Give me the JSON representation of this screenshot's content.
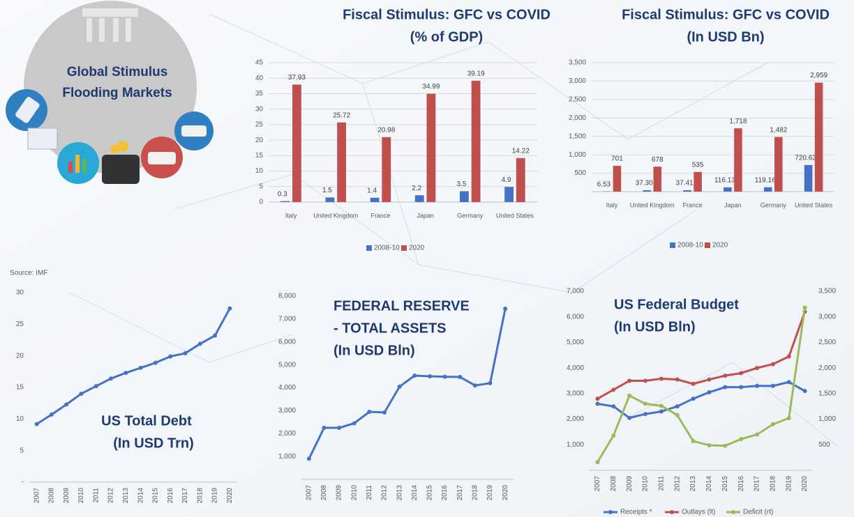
{
  "illustration": {
    "title": [
      "Global Stimulus",
      "Flooding Markets"
    ]
  },
  "chart_data": [
    {
      "type": "bar",
      "title": [
        "Fiscal Stimulus: GFC vs COVID",
        "(% of GDP)"
      ],
      "categories": [
        "Italy",
        "United Kingdom",
        "France",
        "Japan",
        "Germany",
        "United States"
      ],
      "series": [
        {
          "name": "2008-10",
          "color": "#4472c4",
          "values": [
            0.3,
            1.5,
            1.4,
            2.2,
            3.5,
            4.9
          ]
        },
        {
          "name": "2020",
          "color": "#c0504d",
          "values": [
            37.93,
            25.72,
            20.98,
            34.99,
            39.19,
            14.22
          ]
        }
      ],
      "ylim": [
        0,
        45
      ],
      "yticks": [
        0,
        5,
        10,
        15,
        20,
        25,
        30,
        35,
        40,
        45
      ],
      "grid": true,
      "legend": "bottom"
    },
    {
      "type": "bar",
      "title": [
        "Fiscal Stimulus: GFC vs COVID",
        "(In USD Bn)"
      ],
      "categories": [
        "Italy",
        "United Kingdom",
        "France",
        "Japan",
        "Germany",
        "United States"
      ],
      "series": [
        {
          "name": "2008-10",
          "color": "#4472c4",
          "values": [
            6.53,
            37.3,
            37.41,
            116.13,
            119.16,
            720.63
          ],
          "value_labels": [
            "6.53",
            "37.30",
            "37.41",
            "116.13",
            "119.16",
            "720.63"
          ]
        },
        {
          "name": "2020",
          "color": "#c0504d",
          "values": [
            701,
            678,
            535,
            1718,
            1482,
            2959
          ],
          "value_labels": [
            "701",
            "678",
            "535",
            "1,718",
            "1,482",
            "2,959"
          ]
        }
      ],
      "ylim": [
        0,
        3500
      ],
      "yticks": [
        500,
        {
          "value": 1000,
          "label": "1,000"
        },
        {
          "value": 1500,
          "label": "1,500"
        },
        {
          "value": 2000,
          "label": "2,000"
        },
        {
          "value": 2500,
          "label": "2,500"
        },
        {
          "value": 3000,
          "label": "3,000"
        },
        {
          "value": 3500,
          "label": "3,500"
        }
      ],
      "grid": true,
      "legend": "bottom"
    },
    {
      "type": "line",
      "title": [
        "US Total Debt",
        "(In USD Trn)"
      ],
      "note": "Source: IMF",
      "categories": [
        "2007",
        "2008",
        "2009",
        "2010",
        "2011",
        "2012",
        "2013",
        "2014",
        "2015",
        "2016",
        "2017",
        "2018",
        "2019",
        "2020"
      ],
      "series": [
        {
          "color": "#4472c4",
          "values": [
            9.2,
            10.7,
            12.3,
            14.0,
            15.2,
            16.4,
            17.3,
            18.1,
            18.9,
            19.9,
            20.4,
            21.9,
            23.2,
            27.5
          ]
        }
      ],
      "ylim": [
        0,
        30
      ],
      "yticks": [
        {
          "value": 0,
          "label": "-"
        },
        5,
        10,
        15,
        20,
        25,
        30
      ],
      "grid": false
    },
    {
      "type": "line",
      "title": [
        "FEDERAL RESERVE",
        "- TOTAL ASSETS",
        "(In USD Bln)"
      ],
      "categories": [
        "2007",
        "2008",
        "2009",
        "2010",
        "2011",
        "2012",
        "2013",
        "2014",
        "2015",
        "2016",
        "2017",
        "2018",
        "2019",
        "2020"
      ],
      "series": [
        {
          "color": "#4472c4",
          "values": [
            900,
            2250,
            2250,
            2450,
            2950,
            2920,
            4050,
            4530,
            4500,
            4480,
            4470,
            4100,
            4200,
            7450
          ]
        }
      ],
      "ylim": [
        0,
        8000
      ],
      "yticks": [
        {
          "value": 1000,
          "label": "1,000"
        },
        {
          "value": 2000,
          "label": "2,000"
        },
        {
          "value": 3000,
          "label": "3,000"
        },
        {
          "value": 4000,
          "label": "4,000"
        },
        {
          "value": 5000,
          "label": "5,000"
        },
        {
          "value": 6000,
          "label": "6,000"
        },
        {
          "value": 7000,
          "label": "7,000"
        },
        {
          "value": 8000,
          "label": "8,000"
        }
      ],
      "grid": false
    },
    {
      "type": "line",
      "title": [
        "US Federal Budget",
        "(In USD Bln)"
      ],
      "categories": [
        "2007",
        "2008",
        "2009",
        "2010",
        "2011",
        "2012",
        "2013",
        "2014",
        "2015",
        "2016",
        "2017",
        "2018",
        "2019",
        "2020"
      ],
      "series": [
        {
          "name": "Receipts *",
          "color": "#4472c4",
          "values": [
            2600,
            2500,
            2050,
            2200,
            2300,
            2500,
            2800,
            3050,
            3250,
            3250,
            3300,
            3300,
            3450,
            3100
          ]
        },
        {
          "name": "Outlays (lt)",
          "color": "#c0504d",
          "values": [
            2800,
            3150,
            3500,
            3500,
            3580,
            3550,
            3380,
            3550,
            3700,
            3800,
            4000,
            4150,
            4450,
            6200
          ]
        },
        {
          "name": "Deficit (rt)",
          "color": "#9bbb59",
          "axis": "y2",
          "values": [
            160,
            680,
            1460,
            1300,
            1260,
            1080,
            570,
            490,
            480,
            610,
            700,
            900,
            1020,
            3180
          ]
        }
      ],
      "ylim": [
        0,
        7000
      ],
      "yticks": [
        {
          "value": 1000,
          "label": "1,000"
        },
        {
          "value": 2000,
          "label": "2,000"
        },
        {
          "value": 3000,
          "label": "3,000"
        },
        {
          "value": 4000,
          "label": "4,000"
        },
        {
          "value": 5000,
          "label": "5,000"
        },
        {
          "value": 6000,
          "label": "6,000"
        },
        {
          "value": 7000,
          "label": "7,000"
        }
      ],
      "y2lim": [
        0,
        3500
      ],
      "y2ticks": [
        500,
        {
          "value": 1000,
          "label": "1,000"
        },
        {
          "value": 1500,
          "label": "1,500"
        },
        {
          "value": 2000,
          "label": "2,000"
        },
        {
          "value": 2500,
          "label": "2,500"
        },
        {
          "value": 3000,
          "label": "3,000"
        },
        {
          "value": 3500,
          "label": "3,500"
        }
      ],
      "grid": false,
      "legend": "bottom"
    }
  ]
}
